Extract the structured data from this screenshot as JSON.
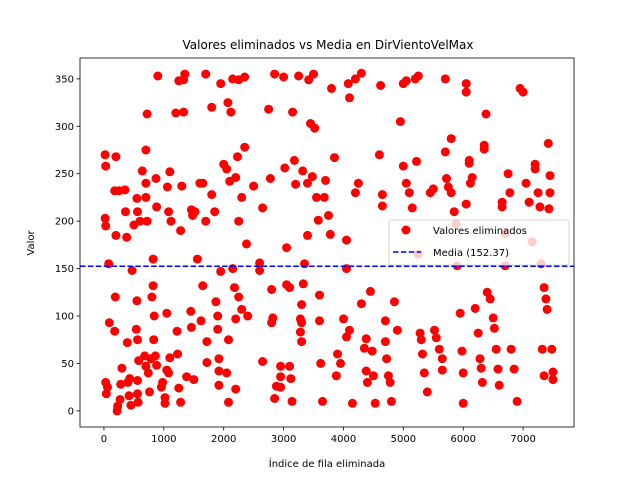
{
  "chart_data": {
    "type": "scatter",
    "title": "Valores eliminados vs Media en DirVientoVelMax",
    "xlabel": "Índice de fila eliminada",
    "ylabel": "Valor",
    "xlim": [
      -400,
      7850
    ],
    "ylim": [
      -17,
      372
    ],
    "xticks": [
      0,
      1000,
      2000,
      3000,
      4000,
      5000,
      6000,
      7000
    ],
    "yticks": [
      0,
      50,
      100,
      150,
      200,
      250,
      300,
      350
    ],
    "grid": false,
    "legend_position": "right",
    "colors": {
      "points": "#ff0000",
      "mean_line": "#0000ff"
    },
    "series": [
      {
        "name": "Valores eliminados",
        "marker": "circle",
        "points": [
          [
            20,
            270
          ],
          [
            30,
            258
          ],
          [
            20,
            203
          ],
          [
            30,
            195
          ],
          [
            80,
            155
          ],
          [
            90,
            93
          ],
          [
            30,
            30
          ],
          [
            40,
            18
          ],
          [
            60,
            25
          ],
          [
            200,
            268
          ],
          [
            180,
            232
          ],
          [
            250,
            232
          ],
          [
            200,
            185
          ],
          [
            190,
            120
          ],
          [
            180,
            84
          ],
          [
            300,
            45
          ],
          [
            280,
            28
          ],
          [
            270,
            12
          ],
          [
            230,
            5
          ],
          [
            220,
            0
          ],
          [
            350,
            233
          ],
          [
            360,
            210
          ],
          [
            380,
            183
          ],
          [
            390,
            72
          ],
          [
            430,
            34
          ],
          [
            400,
            30
          ],
          [
            420,
            16
          ],
          [
            450,
            6
          ],
          [
            470,
            148
          ],
          [
            500,
            196
          ],
          [
            550,
            224
          ],
          [
            560,
            210
          ],
          [
            600,
            200
          ],
          [
            550,
            116
          ],
          [
            540,
            86
          ],
          [
            560,
            75
          ],
          [
            580,
            53
          ],
          [
            560,
            32
          ],
          [
            560,
            18
          ],
          [
            570,
            9
          ],
          [
            640,
            253
          ],
          [
            700,
            275
          ],
          [
            700,
            240
          ],
          [
            700,
            225
          ],
          [
            720,
            313
          ],
          [
            720,
            200
          ],
          [
            680,
            58
          ],
          [
            700,
            47
          ],
          [
            740,
            40
          ],
          [
            760,
            20
          ],
          [
            780,
            55
          ],
          [
            820,
            160
          ],
          [
            820,
            132
          ],
          [
            800,
            120
          ],
          [
            840,
            100
          ],
          [
            830,
            75
          ],
          [
            860,
            58
          ],
          [
            880,
            48
          ],
          [
            900,
            353
          ],
          [
            870,
            245
          ],
          [
            880,
            215
          ],
          [
            980,
            30
          ],
          [
            1020,
            14
          ],
          [
            960,
            25
          ],
          [
            1020,
            8
          ],
          [
            1100,
            252
          ],
          [
            1060,
            236
          ],
          [
            1080,
            210
          ],
          [
            1120,
            200
          ],
          [
            1050,
            103
          ],
          [
            1050,
            43
          ],
          [
            1080,
            40
          ],
          [
            1100,
            56
          ],
          [
            1200,
            314
          ],
          [
            1250,
            348
          ],
          [
            1330,
            349
          ],
          [
            1330,
            315
          ],
          [
            1350,
            355
          ],
          [
            1300,
            237
          ],
          [
            1280,
            190
          ],
          [
            1220,
            84
          ],
          [
            1230,
            60
          ],
          [
            1250,
            24
          ],
          [
            1280,
            9
          ],
          [
            1460,
            212
          ],
          [
            1480,
            206
          ],
          [
            1520,
            210
          ],
          [
            1450,
            105
          ],
          [
            1460,
            88
          ],
          [
            1380,
            36
          ],
          [
            1500,
            33
          ],
          [
            1560,
            160
          ],
          [
            1600,
            240
          ],
          [
            1650,
            240
          ],
          [
            1700,
            355
          ],
          [
            1700,
            200
          ],
          [
            1650,
            132
          ],
          [
            1620,
            95
          ],
          [
            1720,
            73
          ],
          [
            1720,
            51
          ],
          [
            1800,
            320
          ],
          [
            1800,
            228
          ],
          [
            1850,
            210
          ],
          [
            1870,
            115
          ],
          [
            1900,
            100
          ],
          [
            1900,
            86
          ],
          [
            1920,
            55
          ],
          [
            1920,
            42
          ],
          [
            1920,
            27
          ],
          [
            1950,
            345
          ],
          [
            1950,
            147
          ],
          [
            2000,
            260
          ],
          [
            2050,
            255
          ],
          [
            2070,
            325
          ],
          [
            2120,
            315
          ],
          [
            2100,
            242
          ],
          [
            2150,
            350
          ],
          [
            2180,
            130
          ],
          [
            2200,
            246
          ],
          [
            2230,
            268
          ],
          [
            2250,
            200
          ],
          [
            2300,
            225
          ],
          [
            2350,
            278
          ],
          [
            2380,
            176
          ],
          [
            2300,
            107
          ],
          [
            2250,
            120
          ],
          [
            2200,
            97
          ],
          [
            2150,
            150
          ],
          [
            2080,
            75
          ],
          [
            2050,
            40
          ],
          [
            2080,
            9
          ],
          [
            2200,
            23
          ],
          [
            2250,
            349
          ],
          [
            2350,
            352
          ],
          [
            2400,
            100
          ],
          [
            2500,
            237
          ],
          [
            2600,
            148
          ],
          [
            2600,
            156
          ],
          [
            2650,
            214
          ],
          [
            2650,
            52
          ],
          [
            2750,
            318
          ],
          [
            2780,
            245
          ],
          [
            2820,
            98
          ],
          [
            2800,
            128
          ],
          [
            2800,
            93
          ],
          [
            2850,
            355
          ],
          [
            2880,
            26
          ],
          [
            2850,
            13
          ],
          [
            2950,
            47
          ],
          [
            2950,
            36
          ],
          [
            2950,
            25
          ],
          [
            3000,
            352
          ],
          [
            3020,
            256
          ],
          [
            3050,
            172
          ],
          [
            3050,
            133
          ],
          [
            3100,
            130
          ],
          [
            3100,
            47
          ],
          [
            3120,
            34
          ],
          [
            3140,
            10
          ],
          [
            3150,
            315
          ],
          [
            3180,
            264
          ],
          [
            3200,
            239
          ],
          [
            3250,
            353
          ],
          [
            3300,
            112
          ],
          [
            3280,
            97
          ],
          [
            3300,
            93
          ],
          [
            3280,
            83
          ],
          [
            3300,
            73
          ],
          [
            3320,
            253
          ],
          [
            3330,
            134
          ],
          [
            3350,
            155
          ],
          [
            3400,
            185
          ],
          [
            3400,
            240
          ],
          [
            3420,
            349
          ],
          [
            3450,
            303
          ],
          [
            3480,
            247
          ],
          [
            3500,
            355
          ],
          [
            3520,
            298
          ],
          [
            3550,
            225
          ],
          [
            3580,
            201
          ],
          [
            3600,
            122
          ],
          [
            3600,
            95
          ],
          [
            3620,
            50
          ],
          [
            3650,
            10
          ],
          [
            3680,
            225
          ],
          [
            3700,
            243
          ],
          [
            3750,
            206
          ],
          [
            3780,
            186
          ],
          [
            3800,
            340
          ],
          [
            3850,
            267
          ],
          [
            3880,
            37
          ],
          [
            3900,
            60
          ],
          [
            3950,
            50
          ],
          [
            4000,
            97
          ],
          [
            4050,
            78
          ],
          [
            4050,
            180
          ],
          [
            4050,
            150
          ],
          [
            4080,
            345
          ],
          [
            4100,
            330
          ],
          [
            4100,
            85
          ],
          [
            4150,
            8
          ],
          [
            4200,
            230
          ],
          [
            4250,
            240
          ],
          [
            4200,
            350
          ],
          [
            4300,
            356
          ],
          [
            4300,
            113
          ],
          [
            4350,
            66
          ],
          [
            4380,
            76
          ],
          [
            4380,
            42
          ],
          [
            4400,
            30
          ],
          [
            4450,
            126
          ],
          [
            4480,
            63
          ],
          [
            4500,
            37
          ],
          [
            4530,
            8
          ],
          [
            4600,
            270
          ],
          [
            4620,
            343
          ],
          [
            4650,
            228
          ],
          [
            4650,
            216
          ],
          [
            4700,
            95
          ],
          [
            4700,
            73
          ],
          [
            4720,
            55
          ],
          [
            4750,
            37
          ],
          [
            4780,
            30
          ],
          [
            4800,
            10
          ],
          [
            4850,
            115
          ],
          [
            4900,
            85
          ],
          [
            4950,
            305
          ],
          [
            5000,
            345
          ],
          [
            5050,
            348
          ],
          [
            5000,
            258
          ],
          [
            5050,
            240
          ],
          [
            5100,
            230
          ],
          [
            5150,
            214
          ],
          [
            5200,
            350
          ],
          [
            5250,
            353
          ],
          [
            5220,
            263
          ],
          [
            5250,
            165
          ],
          [
            5280,
            82
          ],
          [
            5300,
            75
          ],
          [
            5320,
            60
          ],
          [
            5350,
            40
          ],
          [
            5400,
            20
          ],
          [
            5450,
            230
          ],
          [
            5500,
            234
          ],
          [
            5520,
            85
          ],
          [
            5550,
            77
          ],
          [
            5600,
            65
          ],
          [
            5650,
            55
          ],
          [
            5650,
            43
          ],
          [
            5700,
            350
          ],
          [
            5700,
            273
          ],
          [
            5720,
            245
          ],
          [
            5750,
            236
          ],
          [
            5800,
            287
          ],
          [
            5800,
            230
          ],
          [
            5850,
            210
          ],
          [
            5880,
            197
          ],
          [
            5900,
            153
          ],
          [
            5950,
            103
          ],
          [
            5980,
            63
          ],
          [
            6000,
            40
          ],
          [
            6000,
            8
          ],
          [
            6050,
            345
          ],
          [
            6050,
            336
          ],
          [
            6050,
            218
          ],
          [
            6100,
            261
          ],
          [
            6100,
            264
          ],
          [
            6120,
            240
          ],
          [
            6150,
            246
          ],
          [
            6200,
            108
          ],
          [
            6250,
            82
          ],
          [
            6280,
            55
          ],
          [
            6300,
            45
          ],
          [
            6320,
            30
          ],
          [
            6350,
            280
          ],
          [
            6350,
            276
          ],
          [
            6380,
            313
          ],
          [
            6400,
            125
          ],
          [
            6450,
            118
          ],
          [
            6500,
            98
          ],
          [
            6520,
            87
          ],
          [
            6550,
            65
          ],
          [
            6580,
            44
          ],
          [
            6600,
            27
          ],
          [
            6650,
            220
          ],
          [
            6650,
            215
          ],
          [
            6700,
            187
          ],
          [
            6700,
            153
          ],
          [
            6750,
            250
          ],
          [
            6780,
            230
          ],
          [
            6800,
            65
          ],
          [
            6850,
            44
          ],
          [
            6900,
            10
          ],
          [
            6950,
            340
          ],
          [
            7000,
            336
          ],
          [
            7050,
            240
          ],
          [
            7100,
            220
          ],
          [
            7150,
            178
          ],
          [
            7200,
            260
          ],
          [
            7200,
            255
          ],
          [
            7250,
            230
          ],
          [
            7280,
            215
          ],
          [
            7300,
            155
          ],
          [
            7320,
            65
          ],
          [
            7350,
            37
          ],
          [
            7350,
            130
          ],
          [
            7380,
            118
          ],
          [
            7400,
            107
          ],
          [
            7420,
            282
          ],
          [
            7430,
            213
          ],
          [
            7450,
            248
          ],
          [
            7450,
            230
          ],
          [
            7480,
            65
          ],
          [
            7500,
            41
          ],
          [
            7500,
            33
          ]
        ]
      }
    ],
    "mean": {
      "label": "Media (152.37)",
      "value": 152.37,
      "style": "dashed"
    }
  }
}
